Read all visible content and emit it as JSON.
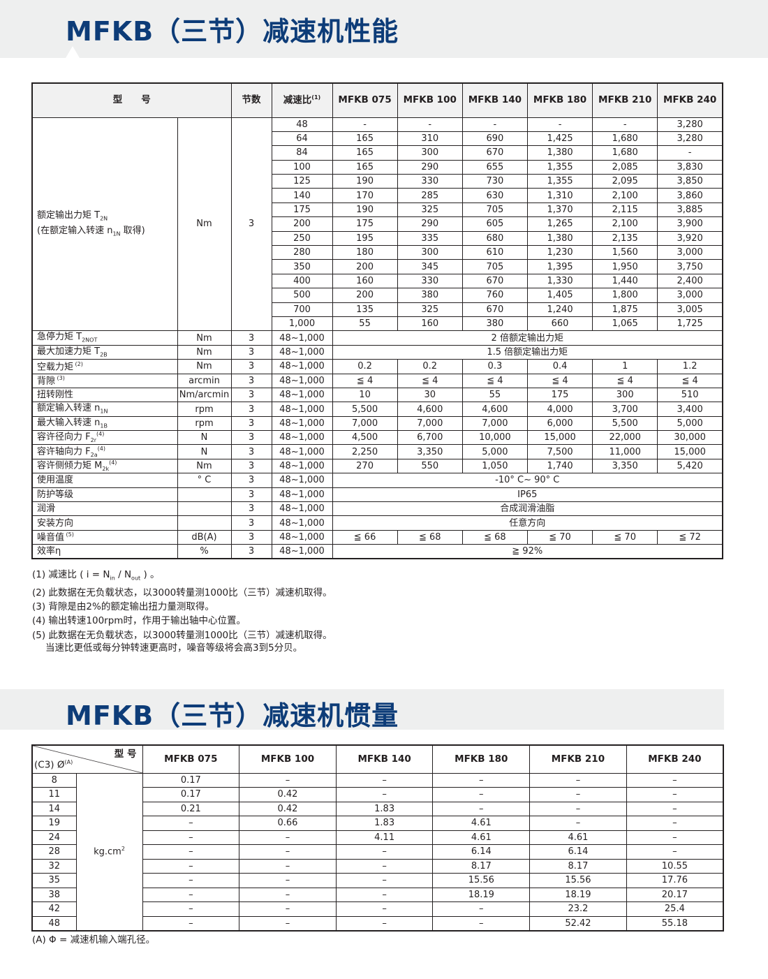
{
  "performance": {
    "title": "MFKB（三节）减速机性能",
    "headers": {
      "model": "型　　号",
      "stage": "节数",
      "ratio": "减速比",
      "ratio_sup": "(1)",
      "models": [
        "MFKB 075",
        "MFKB 100",
        "MFKB 140",
        "MFKB 180",
        "MFKB 210",
        "MFKB 240"
      ]
    },
    "rated_torque": {
      "label": "额定输出力矩 T",
      "label_sub": "2N",
      "label2": "(在额定输入转速 n",
      "label2_sub": "1N",
      "label2_post": " 取得)",
      "unit": "Nm",
      "stage": "3",
      "rows": [
        {
          "ratio": "48",
          "values": [
            "-",
            "-",
            "-",
            "-",
            "-",
            "3,280"
          ]
        },
        {
          "ratio": "64",
          "values": [
            "165",
            "310",
            "690",
            "1,425",
            "1,680",
            "3,280"
          ]
        },
        {
          "ratio": "84",
          "values": [
            "165",
            "300",
            "670",
            "1,380",
            "1,680",
            "-"
          ]
        },
        {
          "ratio": "100",
          "values": [
            "165",
            "290",
            "655",
            "1,355",
            "2,085",
            "3,830"
          ]
        },
        {
          "ratio": "125",
          "values": [
            "190",
            "330",
            "730",
            "1,355",
            "2,095",
            "3,850"
          ]
        },
        {
          "ratio": "140",
          "values": [
            "170",
            "285",
            "630",
            "1,310",
            "2,100",
            "3,860"
          ]
        },
        {
          "ratio": "175",
          "values": [
            "190",
            "325",
            "705",
            "1,370",
            "2,115",
            "3,885"
          ]
        },
        {
          "ratio": "200",
          "values": [
            "175",
            "290",
            "605",
            "1,265",
            "2,100",
            "3,900"
          ]
        },
        {
          "ratio": "250",
          "values": [
            "195",
            "335",
            "680",
            "1,380",
            "2,135",
            "3,920"
          ]
        },
        {
          "ratio": "280",
          "values": [
            "180",
            "300",
            "610",
            "1,230",
            "1,560",
            "3,000"
          ]
        },
        {
          "ratio": "350",
          "values": [
            "200",
            "345",
            "705",
            "1,395",
            "1,950",
            "3,750"
          ]
        },
        {
          "ratio": "400",
          "values": [
            "160",
            "330",
            "670",
            "1,330",
            "1,440",
            "2,400"
          ]
        },
        {
          "ratio": "500",
          "values": [
            "200",
            "380",
            "760",
            "1,405",
            "1,800",
            "3,000"
          ]
        },
        {
          "ratio": "700",
          "values": [
            "135",
            "325",
            "670",
            "1,240",
            "1,875",
            "3,005"
          ]
        },
        {
          "ratio": "1,000",
          "values": [
            "55",
            "160",
            "380",
            "660",
            "1,065",
            "1,725"
          ]
        }
      ]
    },
    "specs": [
      {
        "label": "急停力矩 T",
        "sub": "2NOT",
        "sup": "",
        "unit": "Nm",
        "stage": "3",
        "range": "48~1,000",
        "merged": "2 倍额定输出力矩"
      },
      {
        "label": "最大加速力矩 T",
        "sub": "2B",
        "sup": "",
        "unit": "Nm",
        "stage": "3",
        "range": "48~1,000",
        "merged": "1.5 倍额定输出力矩"
      },
      {
        "label": "空载力矩",
        "sub": "",
        "sup": " (2)",
        "unit": "Nm",
        "stage": "3",
        "range": "48~1,000",
        "values": [
          "0.2",
          "0.2",
          "0.3",
          "0.4",
          "1",
          "1.2"
        ]
      },
      {
        "label": "背隙",
        "sub": "",
        "sup": " (3)",
        "unit": "arcmin",
        "stage": "3",
        "range": "48~1,000",
        "values": [
          "≦ 4",
          "≦ 4",
          "≦ 4",
          "≦ 4",
          "≦ 4",
          "≦ 4"
        ]
      },
      {
        "label": "扭转刚性",
        "sub": "",
        "sup": "",
        "unit": "Nm/arcmin",
        "stage": "3",
        "range": "48~1,000",
        "values": [
          "10",
          "30",
          "55",
          "175",
          "300",
          "510"
        ]
      },
      {
        "label": "额定输入转速 n",
        "sub": "1N",
        "sup": "",
        "unit": "rpm",
        "stage": "3",
        "range": "48~1,000",
        "values": [
          "5,500",
          "4,600",
          "4,600",
          "4,000",
          "3,700",
          "3,400"
        ]
      },
      {
        "label": "最大输入转速 n",
        "sub": "1B",
        "sup": "",
        "unit": "rpm",
        "stage": "3",
        "range": "48~1,000",
        "values": [
          "7,000",
          "7,000",
          "7,000",
          "6,000",
          "5,500",
          "5,000"
        ]
      },
      {
        "label": "容许径向力 F",
        "sub": "2r",
        "sup": "(4)",
        "unit": "N",
        "stage": "3",
        "range": "48~1,000",
        "values": [
          "4,500",
          "6,700",
          "10,000",
          "15,000",
          "22,000",
          "30,000"
        ]
      },
      {
        "label": "容许轴向力 F",
        "sub": "2a",
        "sup": "(4)",
        "unit": "N",
        "stage": "3",
        "range": "48~1,000",
        "values": [
          "2,250",
          "3,350",
          "5,000",
          "7,500",
          "11,000",
          "15,000"
        ]
      },
      {
        "label": "容许侧倾力矩 M",
        "sub": "2k",
        "sup": "(4)",
        "unit": "Nm",
        "stage": "3",
        "range": "48~1,000",
        "values": [
          "270",
          "550",
          "1,050",
          "1,740",
          "3,350",
          "5,420"
        ]
      },
      {
        "label": "使用温度",
        "sub": "",
        "sup": "",
        "unit": "° C",
        "stage": "3",
        "range": "48~1,000",
        "merged": "-10° C~ 90° C"
      },
      {
        "label": "防护等级",
        "sub": "",
        "sup": "",
        "unit": "",
        "stage": "3",
        "range": "48~1,000",
        "merged": "IP65"
      },
      {
        "label": "润滑",
        "sub": "",
        "sup": "",
        "unit": "",
        "stage": "3",
        "range": "48~1,000",
        "merged": "合成润滑油脂"
      },
      {
        "label": "安装方向",
        "sub": "",
        "sup": "",
        "unit": "",
        "stage": "3",
        "range": "48~1,000",
        "merged": "任意方向"
      },
      {
        "label": "噪音值",
        "sub": "",
        "sup": " (5)",
        "unit": "dB(A)",
        "stage": "3",
        "range": "48~1,000",
        "values": [
          "≦ 66",
          "≦ 68",
          "≦ 68",
          "≦ 70",
          "≦ 70",
          "≦ 72"
        ]
      },
      {
        "label": "效率η",
        "sub": "",
        "sup": "",
        "unit": "%",
        "stage": "3",
        "range": "48~1,000",
        "merged": "≧ 92%"
      }
    ],
    "notes": {
      "n1_pre": "(1) 减速比 ( i = N",
      "n1_sub1": "in",
      "n1_mid": " / N",
      "n1_sub2": "out",
      "n1_post": " ) 。",
      "lines": [
        "(2) 此数据在无负载状态，以3000转量测1000比（三节）减速机取得。",
        "(3) 背隙是由2%的额定输出扭力量测取得。",
        "(4) 输出转速100rpm时，作用于输出轴中心位置。",
        "(5) 此数据在无负载状态，以3000转量测1000比（三节）减速机取得。"
      ],
      "n5_cont": "当速比更低或每分钟转速更高时，噪音等级将会高3到5分贝。"
    }
  },
  "inertia": {
    "title": "MFKB（三节）减速机惯量",
    "corner_top": "型 号",
    "corner_bottom": "(C3) Ø",
    "corner_sup": "(A)",
    "unit": "kg.cm",
    "unit_sup": "2",
    "models": [
      "MFKB 075",
      "MFKB 100",
      "MFKB 140",
      "MFKB 180",
      "MFKB 210",
      "MFKB 240"
    ],
    "rows": [
      {
        "d": "8",
        "values": [
          "0.17",
          "–",
          "–",
          "–",
          "–",
          "–"
        ]
      },
      {
        "d": "11",
        "values": [
          "0.17",
          "0.42",
          "–",
          "–",
          "–",
          "–"
        ]
      },
      {
        "d": "14",
        "values": [
          "0.21",
          "0.42",
          "1.83",
          "–",
          "–",
          "–"
        ]
      },
      {
        "d": "19",
        "values": [
          "–",
          "0.66",
          "1.83",
          "4.61",
          "–",
          "–"
        ]
      },
      {
        "d": "24",
        "values": [
          "–",
          "–",
          "4.11",
          "4.61",
          "4.61",
          "–"
        ]
      },
      {
        "d": "28",
        "values": [
          "–",
          "–",
          "–",
          "6.14",
          "6.14",
          "–"
        ]
      },
      {
        "d": "32",
        "values": [
          "–",
          "–",
          "–",
          "8.17",
          "8.17",
          "10.55"
        ]
      },
      {
        "d": "35",
        "values": [
          "–",
          "–",
          "–",
          "15.56",
          "15.56",
          "17.76"
        ]
      },
      {
        "d": "38",
        "values": [
          "–",
          "–",
          "–",
          "18.19",
          "18.19",
          "20.17"
        ]
      },
      {
        "d": "42",
        "values": [
          "–",
          "–",
          "–",
          "–",
          "23.2",
          "25.4"
        ]
      },
      {
        "d": "48",
        "values": [
          "–",
          "–",
          "–",
          "–",
          "52.42",
          "55.18"
        ]
      }
    ],
    "note": "(A) Φ = 减速机输入端孔径。"
  },
  "colors": {
    "title": "#0d3c78",
    "banner": "#eeefef",
    "header_bg": "#f1f1f1"
  }
}
